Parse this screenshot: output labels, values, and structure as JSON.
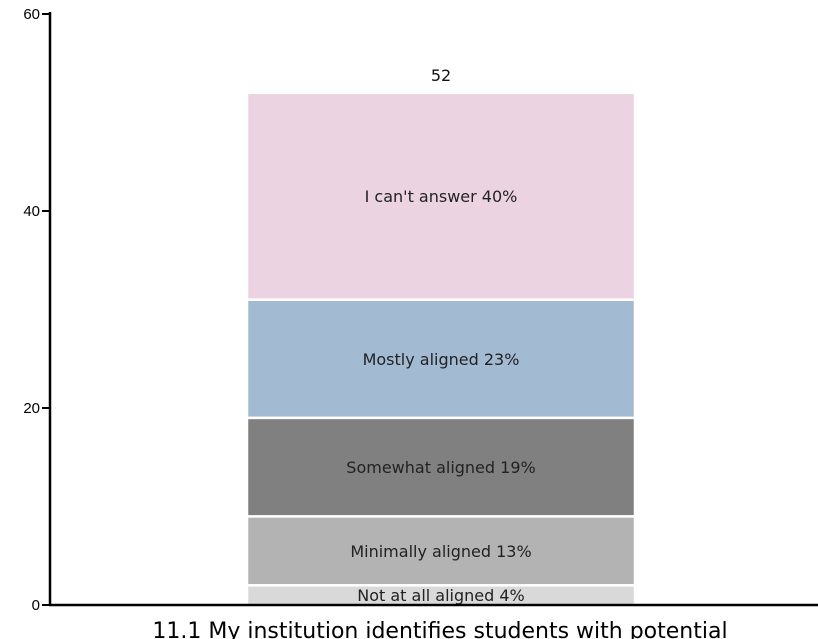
{
  "chart_data": {
    "type": "bar",
    "stacked": true,
    "categories": [
      "11.1 My institution identifies students with potential"
    ],
    "total_label": "52",
    "ylim": [
      0,
      60
    ],
    "yticks": [
      "0",
      "20",
      "40",
      "60"
    ],
    "segments": [
      {
        "value": 2,
        "label": "Not at all aligned 4%",
        "color": "#d9d9d9"
      },
      {
        "value": 7,
        "label": "Minimally aligned 13%",
        "color": "#b3b3b3"
      },
      {
        "value": 10,
        "label": "Somewhat aligned 19%",
        "color": "#808080"
      },
      {
        "value": 12,
        "label": "Mostly aligned 23%",
        "color": "#a3bad3"
      },
      {
        "value": 21,
        "label": "I can't answer 40%",
        "color": "#ecd3e2"
      }
    ]
  }
}
